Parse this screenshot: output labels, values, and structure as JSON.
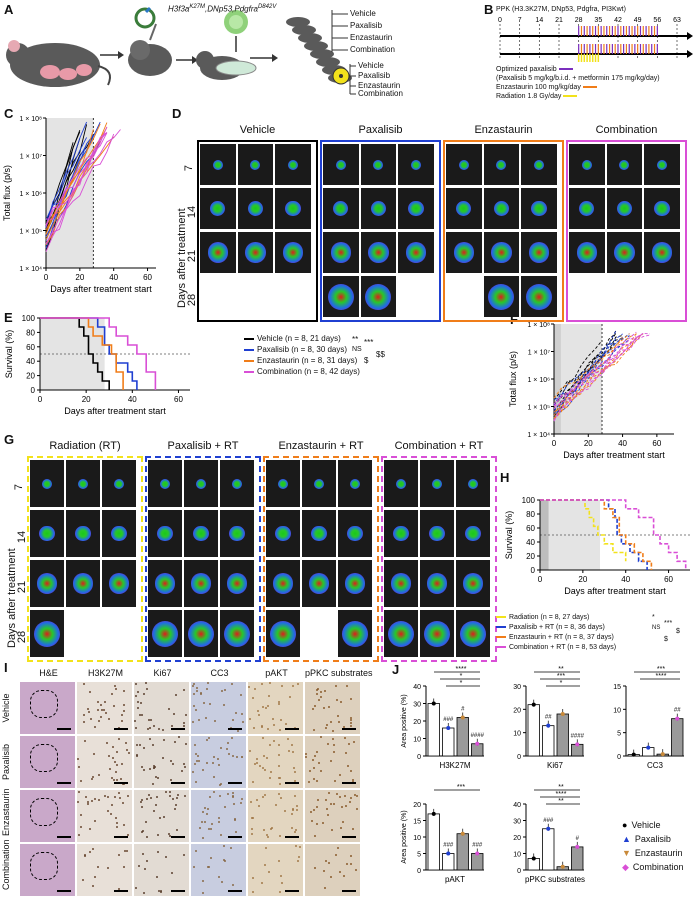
{
  "panels": {
    "A": "A",
    "B": "B",
    "C": "C",
    "D": "D",
    "E": "E",
    "F": "F",
    "G": "G",
    "H": "H",
    "I": "I",
    "J": "J"
  },
  "panelA": {
    "construct": "H3f3a",
    "construct_sup": "K27M",
    "construct_mid": ",DNp53,Pdgfra",
    "construct_sup2": "D842V",
    "arms_top": [
      "Vehicle",
      "Paxalisib",
      "Enzastaurin",
      "Combination"
    ],
    "arms_rt": [
      "Vehicle",
      "Paxalisib",
      "Enzastaurin",
      "Combination"
    ]
  },
  "panelB": {
    "title": "PPK (H3.3K27M, DNp53, Pdgfra, PI3Kwt)",
    "ticks": [
      "0",
      "7",
      "14",
      "21",
      "28",
      "35",
      "42",
      "49",
      "56",
      "63"
    ],
    "legend": [
      {
        "text": "Optimized paxalisib",
        "color": "#7b2fbe"
      },
      {
        "text": "(Paxalisib 5 mg/kg/b.i.d. + metformin 175 mg/kg/day)",
        "color": ""
      },
      {
        "text": "Enzastaurin 100 mg/kg/day",
        "color": "#f07d19"
      },
      {
        "text": "Radiation 1.8 Gy/day",
        "color": "#f2e21b"
      }
    ]
  },
  "panelC": {
    "ylabel": "Total flux (p/s)",
    "xlabel": "Days after treatment start",
    "yticks": [
      "1 × 10⁸",
      "1 × 10⁷",
      "1 × 10⁶",
      "1 × 10⁵",
      "1 × 10⁴"
    ],
    "xticks": [
      "0",
      "20",
      "40",
      "60"
    ]
  },
  "panelD": {
    "columns": [
      "Vehicle",
      "Paxalisib",
      "Enzastaurin",
      "Combination"
    ],
    "rows": [
      "7",
      "14",
      "21",
      "28"
    ],
    "ylabel": "Days after treatment",
    "colors": [
      "#000000",
      "#1f3fd1",
      "#f07d19",
      "#d94fd6"
    ]
  },
  "panelE": {
    "ylabel": "Survival (%)",
    "xlabel": "Days after treatment start",
    "yticks": [
      "100",
      "80",
      "60",
      "40",
      "20",
      "0"
    ],
    "xticks": [
      "0",
      "20",
      "40",
      "60"
    ],
    "legend": [
      {
        "text": "Vehicle (n = 8, 21 days",
        "color": "#000000"
      },
      {
        "text": "Paxalisib (n = 8, 30 days",
        "color": "#1f3fd1"
      },
      {
        "text": "Enzastaurin (n = 8, 31 days",
        "color": "#f07d19"
      },
      {
        "text": "Combination (n = 8, 42 days",
        "color": "#d94fd6"
      }
    ],
    "stats": [
      "**",
      "NS",
      "***",
      "$",
      "$$"
    ]
  },
  "panelF": {
    "ylabel": "Total flux (p/s)",
    "xlabel": "Days after treatment start",
    "yticks": [
      "1 × 10⁸",
      "1 × 10⁷",
      "1 × 10⁶",
      "1 × 10⁵",
      "1 × 10⁴"
    ],
    "xticks": [
      "0",
      "20",
      "40",
      "60"
    ]
  },
  "panelG": {
    "columns": [
      "Radiation (RT)",
      "Paxalisib + RT",
      "Enzastaurin + RT",
      "Combination + RT"
    ],
    "rows": [
      "7",
      "14",
      "21",
      "28"
    ],
    "ylabel": "Days after treatment",
    "colors": [
      "#f2e21b",
      "#1f3fd1",
      "#f07d19",
      "#d94fd6"
    ]
  },
  "panelH": {
    "ylabel": "Survival (%)",
    "xlabel": "Days after treatment start",
    "yticks": [
      "100",
      "80",
      "60",
      "40",
      "20",
      "0"
    ],
    "xticks": [
      "0",
      "20",
      "40",
      "60"
    ],
    "legend": [
      {
        "text": "Radiation (n = 8, 27 days)",
        "color": "#f2e21b"
      },
      {
        "text": "Paxalisib + RT (n = 8, 36 days)",
        "color": "#1f3fd1"
      },
      {
        "text": "Enzastaurin + RT (n = 8, 37 days)",
        "color": "#f07d19"
      },
      {
        "text": "Combination + RT (n = 8, 53 days)",
        "color": "#d94fd6"
      }
    ],
    "stats": [
      "*",
      "NS",
      "***",
      "$",
      "$"
    ]
  },
  "panelI": {
    "columns": [
      "H&E",
      "H3K27M",
      "Ki67",
      "CC3",
      "pAKT",
      "pPKC substrates"
    ],
    "rows": [
      "Vehicle",
      "Paxalisib",
      "Enzastaurin",
      "Combination"
    ]
  },
  "panelJ": {
    "ylabel": "Area positive (%)",
    "legend": [
      {
        "text": "Vehicle",
        "color": "#000000",
        "shape": "circle"
      },
      {
        "text": "Paxalisib",
        "color": "#1f3fd1",
        "shape": "triangle"
      },
      {
        "text": "Enzastaurin",
        "color": "#c98a3a",
        "shape": "tri-down"
      },
      {
        "text": "Combination",
        "color": "#d94fd6",
        "shape": "diamond"
      }
    ]
  },
  "chart_data": [
    {
      "type": "line",
      "panel": "E",
      "title": "",
      "xlabel": "Days after treatment start",
      "ylabel": "Survival (%)",
      "xlim": [
        0,
        65
      ],
      "ylim": [
        0,
        100
      ],
      "series": [
        {
          "name": "Vehicle",
          "color": "#000000",
          "x": [
            0,
            15,
            17,
            19,
            21,
            23,
            25,
            27,
            30
          ],
          "y": [
            100,
            100,
            87.5,
            75,
            50,
            37.5,
            25,
            12.5,
            0
          ]
        },
        {
          "name": "Paxalisib",
          "color": "#1f3fd1",
          "x": [
            0,
            21,
            25,
            28,
            30,
            33,
            38,
            40,
            42
          ],
          "y": [
            100,
            100,
            87.5,
            62.5,
            50,
            37.5,
            25,
            12.5,
            0
          ]
        },
        {
          "name": "Enzastaurin",
          "color": "#f07d19",
          "x": [
            0,
            18,
            21,
            23,
            27,
            31,
            33,
            36
          ],
          "y": [
            100,
            100,
            87.5,
            75,
            62.5,
            50,
            25,
            0
          ]
        },
        {
          "name": "Combination",
          "color": "#d94fd6",
          "x": [
            0,
            25,
            30,
            33,
            38,
            42,
            46,
            50
          ],
          "y": [
            100,
            100,
            87.5,
            75,
            62.5,
            50,
            25,
            0
          ]
        }
      ]
    },
    {
      "type": "line",
      "panel": "H",
      "title": "",
      "xlabel": "Days after treatment start",
      "ylabel": "Survival (%)",
      "xlim": [
        0,
        70
      ],
      "ylim": [
        0,
        100
      ],
      "series": [
        {
          "name": "Radiation",
          "color": "#f2e21b",
          "x": [
            0,
            18,
            21,
            23,
            25,
            27,
            30,
            34,
            40
          ],
          "y": [
            100,
            100,
            87.5,
            75,
            62.5,
            50,
            37.5,
            25,
            12.5
          ]
        },
        {
          "name": "Paxalisib + RT",
          "color": "#1f3fd1",
          "x": [
            0,
            28,
            32,
            35,
            36,
            38,
            42,
            46,
            50
          ],
          "y": [
            100,
            100,
            87.5,
            75,
            50,
            37.5,
            25,
            12.5,
            0
          ]
        },
        {
          "name": "Enzastaurin + RT",
          "color": "#f07d19",
          "x": [
            0,
            24,
            30,
            34,
            37,
            40,
            44,
            48,
            52
          ],
          "y": [
            100,
            100,
            87.5,
            75,
            50,
            37.5,
            25,
            12.5,
            0
          ]
        },
        {
          "name": "Combination + RT",
          "color": "#d94fd6",
          "x": [
            0,
            32,
            40,
            46,
            53,
            56,
            60,
            64,
            68
          ],
          "y": [
            100,
            100,
            87.5,
            75,
            50,
            37.5,
            25,
            12.5,
            0
          ]
        }
      ]
    },
    {
      "type": "bar",
      "panel": "J-H3K27M",
      "xlabel": "H3K27M",
      "ylabel": "Area positive (%)",
      "ylim": [
        0,
        40
      ],
      "yticks": [
        "0",
        "10",
        "20",
        "30",
        "40"
      ],
      "categories": [
        "Vehicle",
        "Paxalisib",
        "Enzastaurin",
        "Combination"
      ],
      "values": [
        30,
        16,
        22,
        7
      ],
      "annotations": [
        "###",
        "#",
        "####"
      ],
      "stats": [
        "****",
        "*",
        "*"
      ]
    },
    {
      "type": "bar",
      "panel": "J-Ki67",
      "xlabel": "Ki67",
      "ylabel": "",
      "ylim": [
        0,
        30
      ],
      "yticks": [
        "0",
        "10",
        "20",
        "30"
      ],
      "categories": [
        "Vehicle",
        "Paxalisib",
        "Enzastaurin",
        "Combination"
      ],
      "values": [
        22,
        13,
        18,
        5
      ],
      "annotations": [
        "##",
        "",
        "####"
      ],
      "stats": [
        "**",
        "***",
        "*"
      ]
    },
    {
      "type": "bar",
      "panel": "J-CC3",
      "xlabel": "CC3",
      "ylabel": "",
      "ylim": [
        0,
        15
      ],
      "yticks": [
        "0",
        "5",
        "10",
        "15"
      ],
      "categories": [
        "Vehicle",
        "Paxalisib",
        "Enzastaurin",
        "Combination"
      ],
      "values": [
        0.3,
        1.8,
        0.4,
        8
      ],
      "annotations": [
        "",
        "",
        "##"
      ],
      "stats": [
        "***",
        "****"
      ]
    },
    {
      "type": "bar",
      "panel": "J-pAKT",
      "xlabel": "pAKT",
      "ylabel": "Area positive (%)",
      "ylim": [
        0,
        20
      ],
      "yticks": [
        "0",
        "5",
        "10",
        "15",
        "20"
      ],
      "categories": [
        "Vehicle",
        "Paxalisib",
        "Enzastaurin",
        "Combination"
      ],
      "values": [
        17,
        5,
        11,
        5
      ],
      "annotations": [
        "###",
        "",
        "###"
      ],
      "stats": [
        "***"
      ]
    },
    {
      "type": "bar",
      "panel": "J-pPKC",
      "xlabel": "pPKC substrates",
      "ylabel": "",
      "ylim": [
        0,
        40
      ],
      "yticks": [
        "0",
        "10",
        "20",
        "30",
        "40"
      ],
      "categories": [
        "Vehicle",
        "Paxalisib",
        "Enzastaurin",
        "Combination"
      ],
      "values": [
        7,
        25,
        2,
        14
      ],
      "annotations": [
        "###",
        "",
        "#"
      ],
      "stats": [
        "**",
        "****",
        "**"
      ]
    }
  ]
}
